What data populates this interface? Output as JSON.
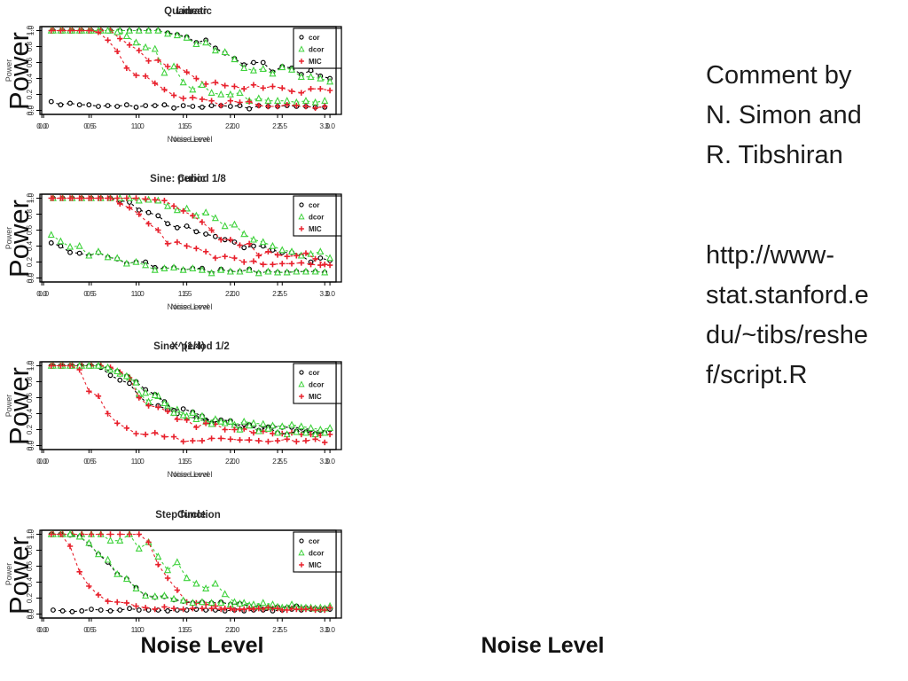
{
  "labels": {
    "power": "Power",
    "noise_level": "Noise Level"
  },
  "side": {
    "comment": "Comment by\nN. Simon and\nR. Tibshiran",
    "url": "http://www-\nstat.stanford.e\ndu/~tibs/reshe\nf/script.R"
  },
  "chart_data": {
    "type": "line",
    "xlabel": "Noise Level",
    "ylabel": "Power",
    "x": [
      0.1,
      0.2,
      0.3,
      0.4,
      0.5,
      0.6,
      0.7,
      0.8,
      0.9,
      1.0,
      1.1,
      1.2,
      1.3,
      1.4,
      1.5,
      1.6,
      1.7,
      1.8,
      1.9,
      2.0,
      2.1,
      2.2,
      2.3,
      2.4,
      2.5,
      2.6,
      2.7,
      2.8,
      2.9,
      3.0
    ],
    "xlim": [
      0,
      3.0
    ],
    "ylim": [
      0,
      1.0
    ],
    "x_tick_labels": [
      "0.0",
      "0.5",
      "1.0",
      "1.5",
      "2.0",
      "2.5",
      "3.0"
    ],
    "x_tick_values": [
      0,
      0.5,
      1.0,
      1.5,
      2.0,
      2.5,
      3.0
    ],
    "y_tick_labels": [
      "0.0",
      "0.2",
      "0.4",
      "0.6",
      "0.8",
      "1.0"
    ],
    "y_tick_values": [
      0,
      0.2,
      0.4,
      0.6,
      0.8,
      1.0
    ],
    "grid": false,
    "legend_position": "top-right",
    "legend": [
      {
        "name": "cor",
        "color": "#000000",
        "marker": "circle"
      },
      {
        "name": "dcor",
        "color": "#3fd23c",
        "marker": "triangle"
      },
      {
        "name": "MIC",
        "color": "#e8202c",
        "marker": "plus"
      }
    ],
    "plots": [
      {
        "title": "Linear",
        "series": [
          {
            "name": "cor",
            "values": [
              1,
              1,
              1,
              1,
              1,
              1,
              1,
              1,
              1,
              1,
              1,
              1,
              0.97,
              0.95,
              0.92,
              0.85,
              0.88,
              0.78,
              0.72,
              0.65,
              0.57,
              0.6,
              0.6,
              0.48,
              0.55,
              0.53,
              0.45,
              0.5,
              0.43,
              0.4
            ]
          },
          {
            "name": "dcor",
            "values": [
              1,
              1,
              1,
              1,
              1,
              1,
              1,
              1,
              1,
              1,
              1,
              1,
              0.96,
              0.94,
              0.91,
              0.83,
              0.85,
              0.75,
              0.73,
              0.64,
              0.53,
              0.5,
              0.52,
              0.46,
              0.54,
              0.51,
              0.42,
              0.42,
              0.4,
              0.36
            ]
          },
          {
            "name": "MIC",
            "values": [
              1,
              1,
              1,
              1,
              1,
              1,
              1,
              0.9,
              0.82,
              0.75,
              0.62,
              0.63,
              0.55,
              0.55,
              0.48,
              0.4,
              0.33,
              0.35,
              0.31,
              0.3,
              0.27,
              0.32,
              0.28,
              0.3,
              0.28,
              0.24,
              0.22,
              0.27,
              0.27,
              0.25
            ]
          }
        ]
      },
      {
        "title": "Quadratic",
        "series": [
          {
            "name": "cor",
            "values": [
              0.11,
              0.07,
              0.09,
              0.07,
              0.07,
              0.05,
              0.06,
              0.05,
              0.07,
              0.04,
              0.06,
              0.06,
              0.07,
              0.03,
              0.06,
              0.05,
              0.04,
              0.06,
              0.06,
              0.05,
              0.06,
              0.02,
              0.06,
              0.05,
              0.05,
              0.06,
              0.05,
              0.05,
              0.04,
              0.04
            ]
          },
          {
            "name": "dcor",
            "values": [
              1,
              1,
              1,
              1,
              1,
              1,
              1,
              0.98,
              0.93,
              0.85,
              0.79,
              0.77,
              0.47,
              0.55,
              0.35,
              0.26,
              0.32,
              0.22,
              0.2,
              0.2,
              0.22,
              0.12,
              0.15,
              0.12,
              0.12,
              0.12,
              0.1,
              0.12,
              0.1,
              0.12
            ]
          },
          {
            "name": "MIC",
            "values": [
              1,
              1,
              1,
              1,
              1,
              0.98,
              0.88,
              0.74,
              0.53,
              0.44,
              0.43,
              0.34,
              0.26,
              0.19,
              0.15,
              0.16,
              0.14,
              0.12,
              0.06,
              0.12,
              0.1,
              0.11,
              0.06,
              0.05,
              0.05,
              0.07,
              0.06,
              0.05,
              0.03,
              0.05
            ]
          }
        ]
      },
      {
        "title": "Cubic",
        "series": [
          {
            "name": "cor",
            "values": [
              1,
              1,
              1,
              1,
              1,
              1,
              1,
              0.97,
              0.95,
              0.85,
              0.82,
              0.78,
              0.68,
              0.63,
              0.65,
              0.58,
              0.55,
              0.52,
              0.48,
              0.45,
              0.38,
              0.4,
              0.4,
              0.35,
              0.32,
              0.32,
              0.28,
              0.2,
              0.25,
              0.22
            ]
          },
          {
            "name": "dcor",
            "values": [
              1,
              1,
              1,
              1,
              1,
              1,
              1,
              1,
              1,
              0.97,
              0.98,
              0.97,
              0.9,
              0.85,
              0.87,
              0.78,
              0.82,
              0.75,
              0.65,
              0.67,
              0.55,
              0.48,
              0.45,
              0.4,
              0.35,
              0.33,
              0.28,
              0.3,
              0.33,
              0.25
            ]
          },
          {
            "name": "MIC",
            "values": [
              1,
              1,
              1,
              1,
              1,
              1,
              1,
              0.93,
              0.88,
              0.8,
              0.68,
              0.6,
              0.43,
              0.45,
              0.4,
              0.37,
              0.33,
              0.25,
              0.27,
              0.25,
              0.2,
              0.21,
              0.17,
              0.17,
              0.18,
              0.18,
              0.19,
              0.17,
              0.16,
              0.16
            ]
          }
        ]
      },
      {
        "title": "Sine: period 1/8",
        "series": [
          {
            "name": "cor",
            "values": [
              0.44,
              0.4,
              0.32,
              0.31,
              0.28,
              0.32,
              0.26,
              0.24,
              0.18,
              0.2,
              0.2,
              0.13,
              0.12,
              0.13,
              0.1,
              0.12,
              0.12,
              0.06,
              0.11,
              0.08,
              0.08,
              0.11,
              0.06,
              0.08,
              0.07,
              0.07,
              0.08,
              0.08,
              0.08,
              0.07
            ]
          },
          {
            "name": "dcor",
            "values": [
              0.54,
              0.46,
              0.39,
              0.4,
              0.28,
              0.33,
              0.26,
              0.25,
              0.18,
              0.2,
              0.16,
              0.1,
              0.12,
              0.13,
              0.1,
              0.12,
              0.1,
              0.06,
              0.1,
              0.08,
              0.08,
              0.1,
              0.06,
              0.08,
              0.07,
              0.07,
              0.08,
              0.08,
              0.08,
              0.07
            ]
          },
          {
            "name": "MIC",
            "values": [
              1,
              1,
              1,
              1,
              1,
              1,
              1,
              1,
              1,
              1,
              0.99,
              0.98,
              0.97,
              0.9,
              0.84,
              0.78,
              0.7,
              0.6,
              0.48,
              0.48,
              0.41,
              0.43,
              0.28,
              0.33,
              0.29,
              0.27,
              0.28,
              0.31,
              0.24,
              0.17
            ]
          }
        ]
      },
      {
        "title": "Sine: period 1/2",
        "series": [
          {
            "name": "cor",
            "values": [
              1,
              1,
              1,
              1,
              1,
              0.98,
              0.88,
              0.82,
              0.78,
              0.62,
              0.52,
              0.5,
              0.45,
              0.4,
              0.35,
              0.35,
              0.32,
              0.32,
              0.28,
              0.25,
              0.27,
              0.25,
              0.25,
              0.24,
              0.23,
              0.23,
              0.22,
              0.2,
              0.18,
              0.2
            ]
          },
          {
            "name": "dcor",
            "values": [
              1,
              1,
              1,
              1,
              1,
              1,
              0.95,
              0.9,
              0.85,
              0.65,
              0.55,
              0.62,
              0.5,
              0.45,
              0.37,
              0.33,
              0.3,
              0.33,
              0.28,
              0.26,
              0.3,
              0.28,
              0.27,
              0.25,
              0.24,
              0.26,
              0.24,
              0.22,
              0.2,
              0.22
            ]
          },
          {
            "name": "MIC",
            "values": [
              1,
              1,
              1,
              1,
              1,
              1,
              0.98,
              0.92,
              0.85,
              0.6,
              0.5,
              0.48,
              0.43,
              0.33,
              0.32,
              0.23,
              0.28,
              0.27,
              0.2,
              0.2,
              0.21,
              0.16,
              0.18,
              0.15,
              0.15,
              0.16,
              0.14,
              0.14,
              0.13,
              0.14
            ]
          }
        ]
      },
      {
        "title": "X^(1/4)",
        "series": [
          {
            "name": "cor",
            "values": [
              1,
              1,
              1,
              1,
              1,
              1,
              0.97,
              0.93,
              0.87,
              0.8,
              0.7,
              0.64,
              0.55,
              0.44,
              0.46,
              0.42,
              0.37,
              0.28,
              0.32,
              0.31,
              0.21,
              0.26,
              0.19,
              0.23,
              0.16,
              0.14,
              0.18,
              0.17,
              0.15,
              0.16
            ]
          },
          {
            "name": "dcor",
            "values": [
              1,
              1,
              1,
              1,
              1,
              1,
              0.98,
              0.93,
              0.87,
              0.79,
              0.66,
              0.63,
              0.53,
              0.41,
              0.38,
              0.41,
              0.37,
              0.27,
              0.3,
              0.3,
              0.2,
              0.25,
              0.18,
              0.21,
              0.16,
              0.14,
              0.17,
              0.16,
              0.14,
              0.16
            ]
          },
          {
            "name": "MIC",
            "values": [
              1,
              1,
              1,
              0.95,
              0.68,
              0.62,
              0.4,
              0.28,
              0.22,
              0.15,
              0.14,
              0.16,
              0.11,
              0.11,
              0.05,
              0.06,
              0.06,
              0.09,
              0.09,
              0.08,
              0.07,
              0.07,
              0.06,
              0.05,
              0.06,
              0.08,
              0.05,
              0.06,
              0.08,
              0.04
            ]
          }
        ]
      },
      {
        "title": "Circle",
        "series": [
          {
            "name": "cor",
            "values": [
              0.05,
              0.04,
              0.03,
              0.04,
              0.06,
              0.05,
              0.04,
              0.05,
              0.07,
              0.05,
              0.05,
              0.05,
              0.04,
              0.05,
              0.05,
              0.06,
              0.05,
              0.05,
              0.04,
              0.05,
              0.04,
              0.05,
              0.05,
              0.04,
              0.05,
              0.06,
              0.05,
              0.06,
              0.05,
              0.06
            ]
          },
          {
            "name": "dcor",
            "values": [
              1,
              1,
              1,
              1,
              1,
              1,
              0.92,
              0.92,
              1.0,
              0.82,
              0.9,
              0.72,
              0.55,
              0.65,
              0.45,
              0.38,
              0.32,
              0.38,
              0.25,
              0.15,
              0.14,
              0.12,
              0.14,
              0.12,
              0.08,
              0.12,
              0.08,
              0.08,
              0.08,
              0.1
            ]
          },
          {
            "name": "MIC",
            "values": [
              1,
              1,
              1,
              1,
              1,
              1,
              1,
              1,
              1,
              1,
              0.9,
              0.62,
              0.45,
              0.3,
              0.15,
              0.14,
              0.12,
              0.1,
              0.07,
              0.05,
              0.06,
              0.06,
              0.06,
              0.07,
              0.05,
              0.07,
              0.06,
              0.07,
              0.06,
              0.08
            ]
          }
        ]
      },
      {
        "title": "Step function",
        "series": [
          {
            "name": "cor",
            "values": [
              1,
              1,
              0.99,
              0.97,
              0.88,
              0.75,
              0.65,
              0.5,
              0.44,
              0.33,
              0.23,
              0.21,
              0.22,
              0.18,
              0.16,
              0.14,
              0.15,
              0.14,
              0.15,
              0.12,
              0.13,
              0.1,
              0.09,
              0.08,
              0.09,
              0.08,
              0.1,
              0.08,
              0.07,
              0.07
            ]
          },
          {
            "name": "dcor",
            "values": [
              1,
              1,
              1,
              0.97,
              0.89,
              0.75,
              0.68,
              0.5,
              0.44,
              0.32,
              0.23,
              0.22,
              0.23,
              0.19,
              0.17,
              0.14,
              0.15,
              0.14,
              0.14,
              0.12,
              0.13,
              0.11,
              0.09,
              0.09,
              0.09,
              0.08,
              0.09,
              0.08,
              0.07,
              0.07
            ]
          },
          {
            "name": "MIC",
            "values": [
              1,
              1,
              0.85,
              0.53,
              0.35,
              0.24,
              0.16,
              0.15,
              0.14,
              0.1,
              0.08,
              0.06,
              0.09,
              0.07,
              0.06,
              0.07,
              0.07,
              0.07,
              0.06,
              0.07,
              0.06,
              0.07,
              0.07,
              0.08,
              0.07,
              0.05,
              0.06,
              0.06,
              0.05,
              0.05
            ]
          }
        ]
      }
    ]
  }
}
